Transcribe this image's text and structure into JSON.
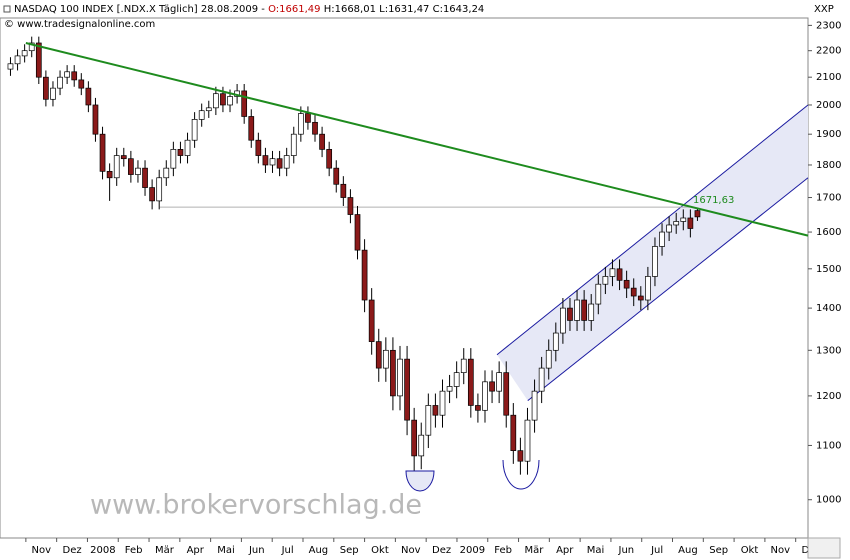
{
  "chart_data": {
    "type": "candlestick",
    "header": "NASDAQ 100 INDEX [.NDX.X  Täglich] 28.08.2009 -",
    "header_open": "O:1661,49",
    "header_rest": "H:1668,01 L:1631,47 C:1643,24",
    "source": "© www.tradesignalonline.com",
    "axis_label": "XXP",
    "watermark": "www.brokervorschlag.de",
    "log_scale": true,
    "up_color": "#ffffff",
    "down_color": "#8b1a1a",
    "x": [
      0.5,
      0.73,
      0.96,
      1.19,
      1.42,
      1.65,
      1.88,
      2.11,
      2.34,
      2.57,
      2.8,
      3.03,
      3.26,
      3.49,
      3.72,
      3.95,
      4.18,
      4.41,
      4.64,
      4.87,
      5.1,
      5.33,
      5.56,
      5.79,
      6.02,
      6.25,
      6.48,
      6.71,
      6.94,
      7.17,
      7.4,
      7.63,
      7.86,
      8.09,
      8.32,
      8.55,
      8.78,
      9.01,
      9.24,
      9.47,
      9.7,
      9.93,
      10.16,
      10.39,
      10.62,
      10.85,
      11.08,
      11.31,
      11.54,
      11.77,
      12.0,
      12.23,
      12.46,
      12.69,
      12.92,
      13.15,
      13.38,
      13.61,
      13.84,
      14.07,
      14.3,
      14.53,
      14.76,
      14.99,
      15.22,
      15.45,
      15.68,
      15.91,
      16.14,
      16.37,
      16.6,
      16.83,
      17.06,
      17.29,
      17.52,
      17.75,
      17.98,
      18.21,
      18.44,
      18.67,
      18.9,
      19.13,
      19.36,
      19.59,
      19.82,
      20.05,
      20.28,
      20.51,
      20.74,
      20.97,
      21.2,
      21.43,
      21.66,
      21.89,
      22.12,
      22.35,
      22.58,
      22.81
    ],
    "open": [
      2130,
      2150,
      2180,
      2200,
      2230,
      2100,
      2020,
      2060,
      2100,
      2120,
      2090,
      2060,
      2000,
      1900,
      1780,
      1760,
      1830,
      1820,
      1770,
      1790,
      1730,
      1690,
      1760,
      1790,
      1850,
      1830,
      1880,
      1950,
      1980,
      1990,
      2040,
      2000,
      2030,
      2050,
      1960,
      1880,
      1830,
      1800,
      1820,
      1790,
      1830,
      1900,
      1970,
      1940,
      1900,
      1850,
      1790,
      1740,
      1700,
      1650,
      1550,
      1420,
      1320,
      1260,
      1300,
      1200,
      1280,
      1150,
      1080,
      1120,
      1180,
      1160,
      1210,
      1220,
      1250,
      1280,
      1180,
      1170,
      1230,
      1210,
      1250,
      1160,
      1090,
      1070,
      1150,
      1210,
      1260,
      1300,
      1340,
      1400,
      1370,
      1420,
      1370,
      1410,
      1460,
      1480,
      1500,
      1470,
      1450,
      1430,
      1420,
      1480,
      1560,
      1600,
      1620,
      1630,
      1640,
      1661.49
    ],
    "high": [
      2175,
      2205,
      2225,
      2255,
      2255,
      2125,
      2085,
      2125,
      2145,
      2145,
      2115,
      2085,
      2025,
      1925,
      1805,
      1855,
      1855,
      1845,
      1815,
      1815,
      1755,
      1785,
      1815,
      1875,
      1875,
      1905,
      1975,
      2005,
      2015,
      2065,
      2065,
      2055,
      2075,
      2075,
      1985,
      1905,
      1855,
      1845,
      1845,
      1855,
      1925,
      1995,
      1995,
      1965,
      1925,
      1875,
      1815,
      1765,
      1725,
      1675,
      1580,
      1450,
      1350,
      1330,
      1330,
      1310,
      1310,
      1175,
      1145,
      1205,
      1205,
      1235,
      1245,
      1275,
      1305,
      1305,
      1205,
      1255,
      1255,
      1275,
      1275,
      1185,
      1115,
      1175,
      1235,
      1285,
      1325,
      1365,
      1425,
      1425,
      1445,
      1445,
      1435,
      1485,
      1505,
      1525,
      1525,
      1495,
      1475,
      1455,
      1505,
      1585,
      1625,
      1645,
      1655,
      1665,
      1665,
      1668.01
    ],
    "low": [
      2105,
      2125,
      2155,
      2175,
      2075,
      1995,
      1995,
      2035,
      2075,
      2065,
      2035,
      1975,
      1875,
      1755,
      1690,
      1735,
      1795,
      1745,
      1745,
      1705,
      1665,
      1665,
      1735,
      1765,
      1805,
      1805,
      1855,
      1925,
      1955,
      1965,
      1975,
      1975,
      2005,
      1935,
      1855,
      1805,
      1775,
      1775,
      1765,
      1765,
      1805,
      1875,
      1915,
      1875,
      1825,
      1765,
      1715,
      1675,
      1625,
      1525,
      1390,
      1290,
      1230,
      1230,
      1170,
      1170,
      1120,
      1030,
      1055,
      1095,
      1135,
      1135,
      1185,
      1195,
      1225,
      1155,
      1145,
      1145,
      1185,
      1185,
      1135,
      1065,
      1045,
      1045,
      1125,
      1185,
      1235,
      1275,
      1315,
      1345,
      1345,
      1345,
      1345,
      1385,
      1435,
      1455,
      1445,
      1425,
      1405,
      1395,
      1395,
      1455,
      1535,
      1575,
      1595,
      1605,
      1585,
      1631.47
    ],
    "close": [
      2150,
      2180,
      2200,
      2230,
      2100,
      2020,
      2060,
      2100,
      2120,
      2090,
      2060,
      2000,
      1900,
      1780,
      1760,
      1830,
      1820,
      1770,
      1790,
      1730,
      1690,
      1760,
      1790,
      1850,
      1830,
      1880,
      1950,
      1980,
      1990,
      2040,
      2000,
      2030,
      2050,
      1960,
      1880,
      1830,
      1800,
      1820,
      1790,
      1830,
      1900,
      1970,
      1940,
      1900,
      1850,
      1790,
      1740,
      1700,
      1650,
      1550,
      1420,
      1320,
      1260,
      1300,
      1200,
      1280,
      1150,
      1080,
      1120,
      1180,
      1160,
      1210,
      1220,
      1250,
      1280,
      1180,
      1170,
      1230,
      1210,
      1250,
      1160,
      1090,
      1070,
      1150,
      1210,
      1260,
      1300,
      1340,
      1400,
      1370,
      1420,
      1370,
      1410,
      1460,
      1480,
      1500,
      1470,
      1450,
      1430,
      1420,
      1480,
      1560,
      1600,
      1620,
      1630,
      1640,
      1610,
      1643.24
    ],
    "xlim": [
      0.16,
      26.4
    ],
    "xticks": [
      {
        "value": 1,
        "label": "Nov"
      },
      {
        "value": 2,
        "label": "Dez"
      },
      {
        "value": 3,
        "label": "2008"
      },
      {
        "value": 4,
        "label": "Feb"
      },
      {
        "value": 5,
        "label": "Mär"
      },
      {
        "value": 6,
        "label": "Apr"
      },
      {
        "value": 7,
        "label": "Mai"
      },
      {
        "value": 8,
        "label": "Jun"
      },
      {
        "value": 9,
        "label": "Jul"
      },
      {
        "value": 10,
        "label": "Aug"
      },
      {
        "value": 11,
        "label": "Sep"
      },
      {
        "value": 12,
        "label": "Okt"
      },
      {
        "value": 13,
        "label": "Nov"
      },
      {
        "value": 14,
        "label": "Dez"
      },
      {
        "value": 15,
        "label": "2009"
      },
      {
        "value": 16,
        "label": "Feb"
      },
      {
        "value": 17,
        "label": "Mär"
      },
      {
        "value": 18,
        "label": "Apr"
      },
      {
        "value": 19,
        "label": "Mai"
      },
      {
        "value": 20,
        "label": "Jun"
      },
      {
        "value": 21,
        "label": "Jul"
      },
      {
        "value": 22,
        "label": "Aug"
      },
      {
        "value": 23,
        "label": "Sep"
      },
      {
        "value": 24,
        "label": "Okt"
      },
      {
        "value": 25,
        "label": "Nov"
      },
      {
        "value": 26,
        "label": "Dez"
      }
    ],
    "ylim": [
      935,
      2330
    ],
    "yticks": [
      1000,
      1100,
      1200,
      1300,
      1400,
      1500,
      1600,
      1700,
      1800,
      1900,
      2000,
      2100,
      2200,
      2300
    ],
    "trend_line": {
      "x": [
        1.0,
        26.4
      ],
      "y": [
        2230,
        1590
      ],
      "color": "#1e8b1e"
    },
    "channel": {
      "color": "#1a1aa0",
      "fill": "#e6e8f6",
      "upper": {
        "x": [
          16.3,
          26.4
        ],
        "y": [
          1290,
          2000
        ]
      },
      "lower": {
        "x": [
          17.3,
          26.4
        ],
        "y": [
          1190,
          1760
        ]
      }
    },
    "level": {
      "value": 1671.63,
      "label": "1671,63",
      "x": [
        5.35,
        22.6
      ],
      "color": "#1e8b1e"
    }
  }
}
